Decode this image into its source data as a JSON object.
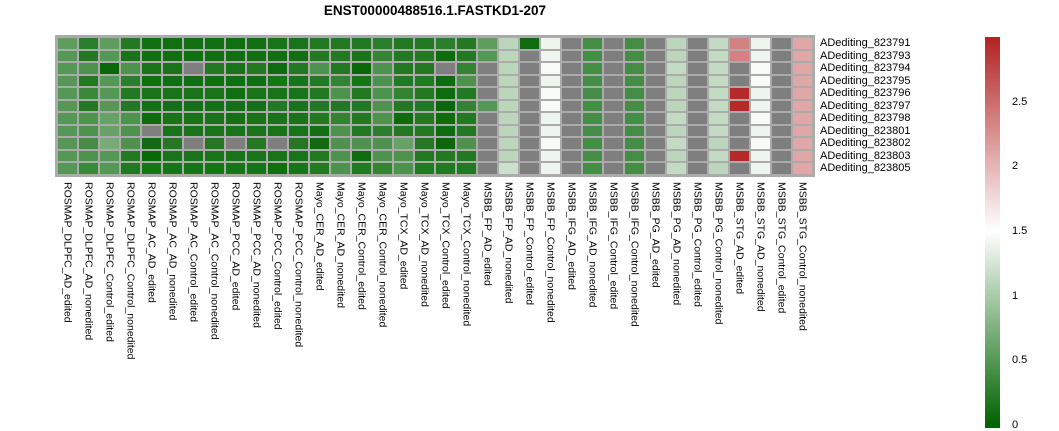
{
  "title": "ENST00000488516.1.FASTKD1-207",
  "chart_data": {
    "type": "heatmap",
    "title": "ENST00000488516.1.FASTKD1-207",
    "rows": [
      "ADediting_823791",
      "ADediting_823793",
      "ADediting_823794",
      "ADediting_823795",
      "ADediting_823796",
      "ADediting_823797",
      "ADediting_823798",
      "ADediting_823801",
      "ADediting_823802",
      "ADediting_823803",
      "ADediting_823805"
    ],
    "columns": [
      "ROSMAP_DLPFC_AD_edited",
      "ROSMAP_DLPFC_AD_nonedited",
      "ROSMAP_DLPFC_Control_edited",
      "ROSMAP_DLPFC_Control_nonedited",
      "ROSMAP_AC_AD_edited",
      "ROSMAP_AC_AD_nonedited",
      "ROSMAP_AC_Control_edited",
      "ROSMAP_AC_Control_nonedited",
      "ROSMAP_PCC_AD_edited",
      "ROSMAP_PCC_AD_nonedited",
      "ROSMAP_PCC_Control_edited",
      "ROSMAP_PCC_Control_nonedited",
      "Mayo_CER_AD_edited",
      "Mayo_CER_AD_nonedited",
      "Mayo_CER_Control_edited",
      "Mayo_CER_Control_nonedited",
      "Mayo_TCX_AD_edited",
      "Mayo_TCX_AD_nonedited",
      "Mayo_TCX_Control_edited",
      "Mayo_TCX_Control_nonedited",
      "MSBB_FP_AD_edited",
      "MSBB_FP_AD_nonedited",
      "MSBB_FP_Control_edited",
      "MSBB_FP_Control_nonedited",
      "MSBB_IFG_AD_edited",
      "MSBB_IFG_AD_nonedited",
      "MSBB_IFG_Control_edited",
      "MSBB_IFG_Control_nonedited",
      "MSBB_PG_AD_edited",
      "MSBB_PG_AD_nonedited",
      "MSBB_PG_Control_edited",
      "MSBB_PG_Control_nonedited",
      "MSBB_STG_AD_edited",
      "MSBB_STG_AD_nonedited",
      "MSBB_STG_Control_edited",
      "MSBB_STG_Control_nonedited"
    ],
    "values": [
      [
        0.55,
        0.25,
        0.55,
        0.2,
        0.1,
        0.1,
        0.1,
        0.1,
        0.1,
        0.1,
        0.15,
        0.15,
        0.2,
        0.2,
        0.2,
        0.25,
        0.2,
        0.2,
        0.25,
        0.2,
        0.55,
        1.1,
        0.08,
        1.4,
        null,
        0.4,
        null,
        0.4,
        null,
        1.1,
        null,
        1.15,
        2.35,
        1.4,
        null,
        2.1
      ],
      [
        0.5,
        0.2,
        0.5,
        0.15,
        0.1,
        0.1,
        0.1,
        0.1,
        0.1,
        0.1,
        0.1,
        0.1,
        0.2,
        0.2,
        0.15,
        0.3,
        0.2,
        0.2,
        0.08,
        0.2,
        0.5,
        1.1,
        null,
        1.4,
        null,
        0.4,
        null,
        0.4,
        null,
        1.1,
        null,
        1.15,
        2.35,
        1.4,
        null,
        2.1
      ],
      [
        0.5,
        0.45,
        0.05,
        0.45,
        0.15,
        0.15,
        null,
        0.2,
        0.15,
        0.2,
        0.08,
        0.2,
        0.45,
        0.2,
        0.05,
        0.45,
        0.2,
        0.2,
        null,
        0.3,
        null,
        1.1,
        null,
        1.45,
        null,
        0.4,
        null,
        0.4,
        null,
        1.15,
        null,
        1.15,
        null,
        1.45,
        null,
        2.1
      ],
      [
        0.5,
        0.2,
        0.5,
        0.25,
        0.1,
        0.1,
        0.1,
        0.1,
        0.1,
        0.1,
        0.15,
        0.15,
        0.2,
        0.3,
        0.15,
        0.45,
        0.2,
        0.2,
        0.08,
        0.45,
        null,
        1.1,
        null,
        1.4,
        null,
        0.4,
        null,
        0.4,
        null,
        1.1,
        null,
        1.15,
        null,
        1.45,
        null,
        2.1
      ],
      [
        0.5,
        0.35,
        0.5,
        0.2,
        0.15,
        0.15,
        0.15,
        0.15,
        0.1,
        0.15,
        0.15,
        0.15,
        0.2,
        0.45,
        0.2,
        0.45,
        0.3,
        0.2,
        0.08,
        0.2,
        null,
        1.1,
        null,
        1.45,
        null,
        0.4,
        null,
        0.4,
        null,
        1.1,
        null,
        1.15,
        2.95,
        1.4,
        null,
        2.1
      ],
      [
        0.5,
        0.2,
        0.5,
        0.2,
        0.12,
        0.12,
        0.12,
        0.12,
        0.12,
        0.12,
        0.2,
        0.15,
        0.2,
        0.2,
        0.2,
        0.45,
        0.2,
        0.2,
        0.05,
        0.3,
        0.5,
        1.1,
        null,
        1.45,
        null,
        0.4,
        null,
        0.4,
        null,
        1.1,
        null,
        1.15,
        2.95,
        1.4,
        null,
        2.1
      ],
      [
        0.5,
        0.45,
        0.6,
        0.45,
        0.08,
        0.15,
        0.15,
        0.15,
        0.12,
        0.15,
        0.15,
        0.15,
        0.2,
        0.3,
        0.2,
        0.45,
        0.08,
        0.2,
        0.08,
        0.2,
        null,
        1.1,
        null,
        1.4,
        null,
        0.4,
        null,
        0.4,
        null,
        1.15,
        null,
        1.15,
        null,
        1.45,
        null,
        2.1
      ],
      [
        0.5,
        0.45,
        0.6,
        0.45,
        null,
        0.15,
        0.15,
        0.15,
        0.15,
        0.15,
        0.15,
        0.15,
        0.1,
        0.45,
        0.2,
        0.25,
        0.2,
        0.2,
        0.08,
        0.2,
        null,
        1.1,
        null,
        1.4,
        null,
        0.4,
        null,
        0.4,
        null,
        1.1,
        null,
        1.15,
        null,
        1.4,
        null,
        2.1
      ],
      [
        0.5,
        0.4,
        0.7,
        0.45,
        0.08,
        0.2,
        null,
        0.2,
        null,
        0.2,
        null,
        0.2,
        0.08,
        0.45,
        0.45,
        0.45,
        0.6,
        0.2,
        0.05,
        0.45,
        null,
        1.1,
        null,
        1.45,
        null,
        0.4,
        null,
        0.4,
        null,
        1.15,
        null,
        1.1,
        null,
        1.45,
        null,
        2.1
      ],
      [
        0.5,
        0.45,
        0.5,
        0.2,
        0.05,
        0.15,
        0.15,
        0.15,
        0.15,
        0.15,
        0.15,
        0.15,
        0.2,
        0.45,
        0.08,
        0.45,
        0.45,
        0.2,
        0.2,
        0.2,
        null,
        1.1,
        null,
        1.4,
        null,
        0.4,
        null,
        0.4,
        null,
        1.1,
        null,
        1.15,
        2.95,
        1.4,
        null,
        2.1
      ],
      [
        0.5,
        0.35,
        0.5,
        0.2,
        0.15,
        0.15,
        0.15,
        0.15,
        0.15,
        0.15,
        0.1,
        0.15,
        0.2,
        0.45,
        0.2,
        0.3,
        0.45,
        0.2,
        0.2,
        0.2,
        null,
        1.2,
        null,
        1.4,
        null,
        0.4,
        null,
        0.4,
        null,
        1.15,
        null,
        1.1,
        null,
        1.4,
        null,
        2.1
      ]
    ],
    "scale": {
      "min": 0,
      "max": 3,
      "tick_labels": [
        "2.5",
        "2",
        "1.5",
        "1",
        "0.5",
        "0"
      ],
      "tick_values": [
        2.5,
        2,
        1.5,
        1,
        0.5,
        0
      ]
    },
    "colormap": {
      "low": "#006400",
      "mid": "#ffffff",
      "high": "#b22222",
      "na": "#7f7f7f",
      "grid": "#ababab"
    },
    "legend_position": "right",
    "grid": "off"
  }
}
